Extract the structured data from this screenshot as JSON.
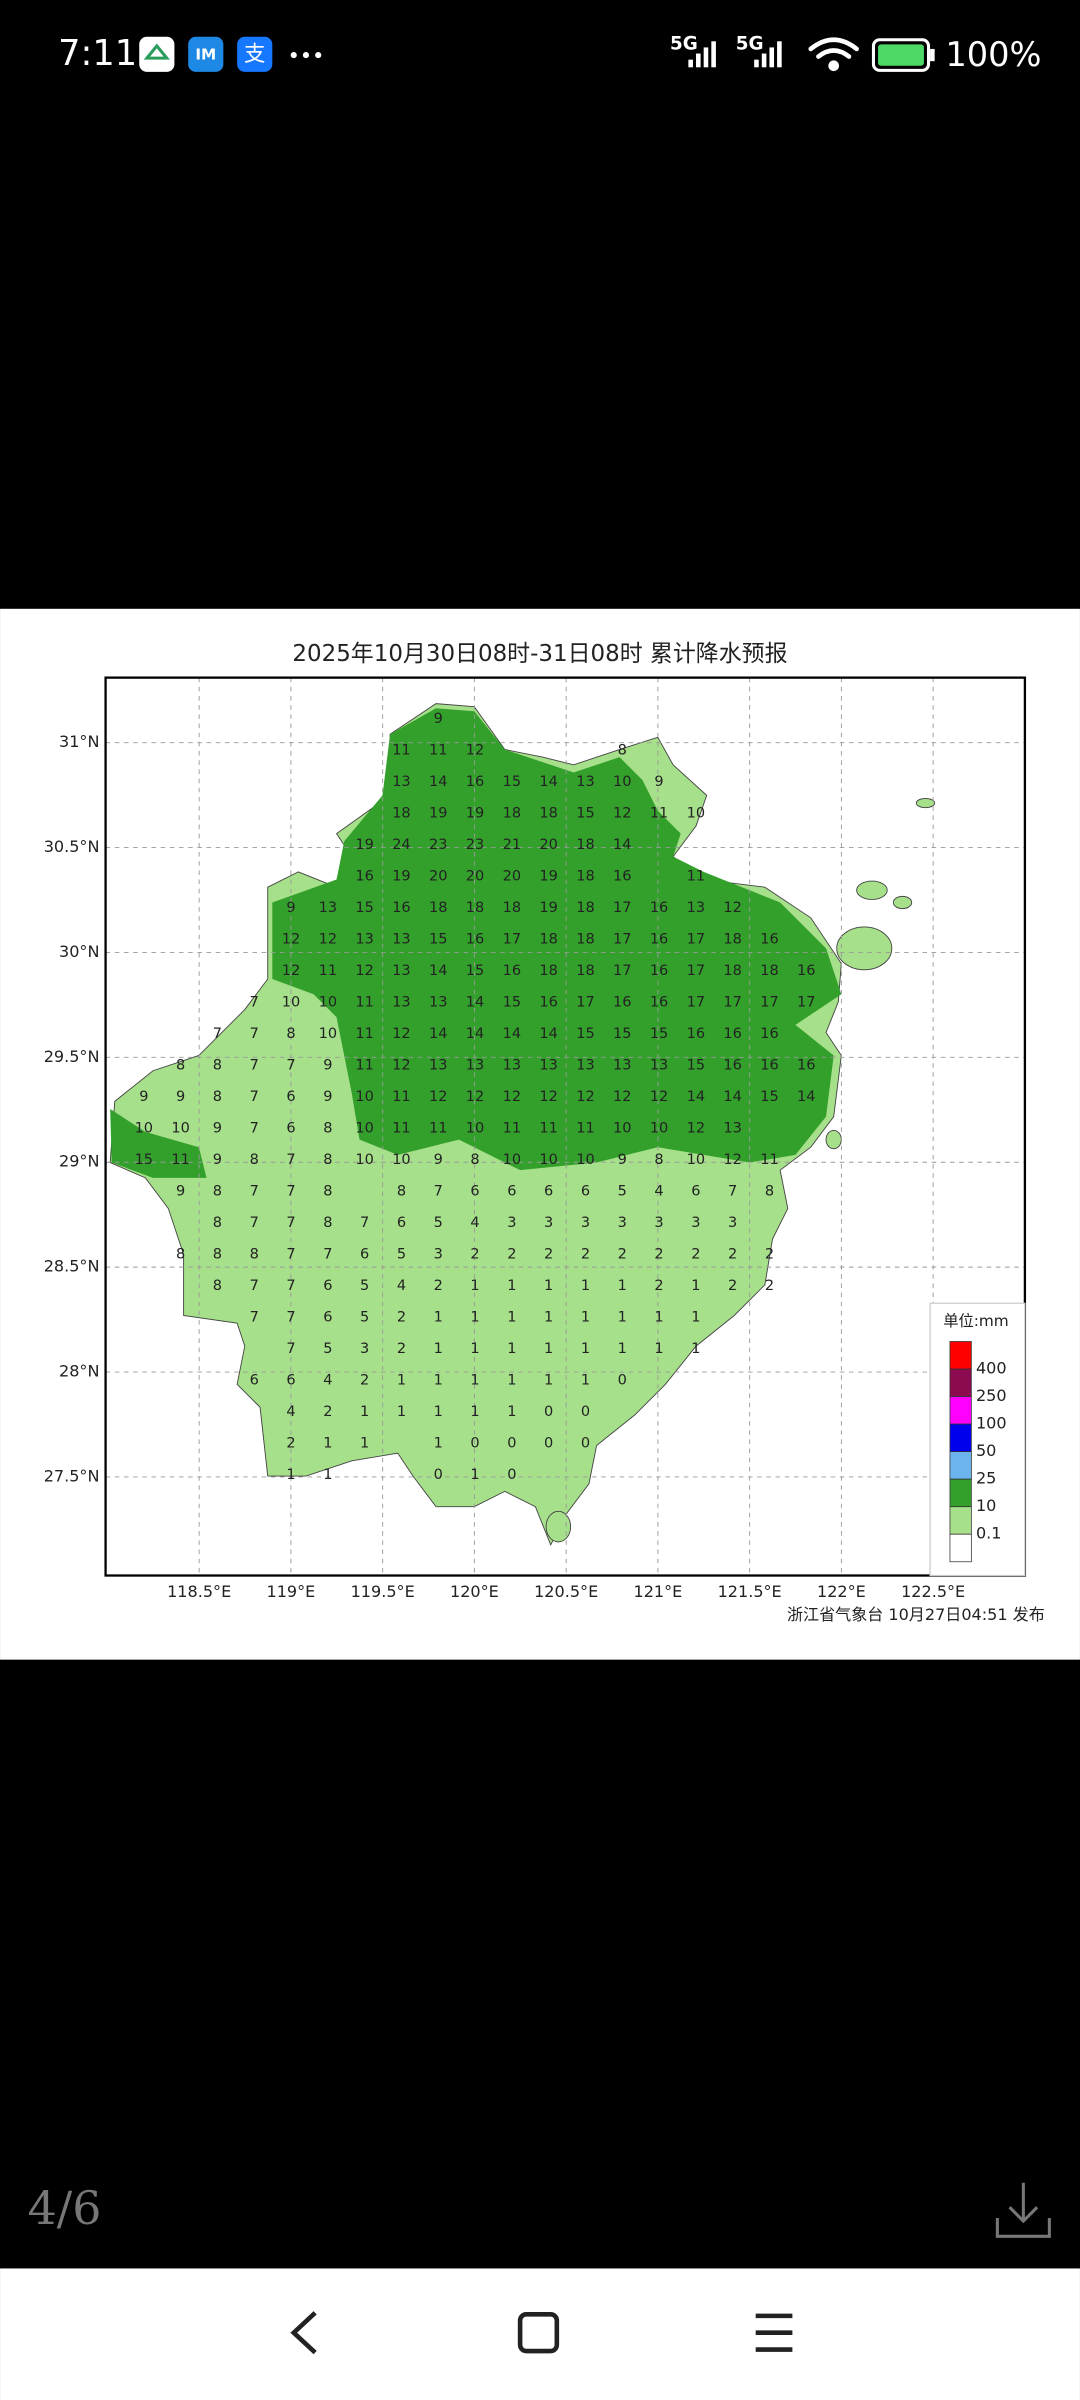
{
  "status_bar": {
    "time": "7:11",
    "network": [
      "5G",
      "5G"
    ],
    "battery": "100%"
  },
  "chart_data": {
    "type": "grid-map",
    "title": "2025年10月30日08时-31日08时 累计降水预报",
    "source": "浙江省气象台 10月27日04:51 发布",
    "xlim": [
      117.99,
      123.0
    ],
    "ylim": [
      27.03,
      31.31
    ],
    "xticks": [
      {
        "value": 118.5,
        "label": "118.5°E"
      },
      {
        "value": 119,
        "label": "119°E"
      },
      {
        "value": 119.5,
        "label": "119.5°E"
      },
      {
        "value": 120,
        "label": "120°E"
      },
      {
        "value": 120.5,
        "label": "120.5°E"
      },
      {
        "value": 121,
        "label": "121°E"
      },
      {
        "value": 121.5,
        "label": "121.5°E"
      },
      {
        "value": 122,
        "label": "122°E"
      },
      {
        "value": 122.5,
        "label": "122.5°E"
      }
    ],
    "yticks": [
      {
        "value": 31,
        "label": "31°N"
      },
      {
        "value": 30.5,
        "label": "30.5°N"
      },
      {
        "value": 30,
        "label": "30°N"
      },
      {
        "value": 29.5,
        "label": "29.5°N"
      },
      {
        "value": 29,
        "label": "29°N"
      },
      {
        "value": 28.5,
        "label": "28.5°N"
      },
      {
        "value": 28,
        "label": "28°N"
      },
      {
        "value": 27.5,
        "label": "27.5°N"
      }
    ],
    "grid": true,
    "rows": [
      [
        null,
        null,
        null,
        null,
        null,
        null,
        null,
        null,
        9,
        null,
        null,
        null,
        null,
        null,
        null,
        null,
        null,
        null,
        null
      ],
      [
        null,
        null,
        null,
        null,
        null,
        null,
        null,
        11,
        11,
        12,
        null,
        null,
        null,
        8,
        null,
        null,
        null,
        null,
        null
      ],
      [
        null,
        null,
        null,
        null,
        null,
        null,
        null,
        13,
        14,
        16,
        15,
        14,
        13,
        10,
        9,
        null,
        null,
        null,
        null
      ],
      [
        null,
        null,
        null,
        null,
        null,
        null,
        null,
        18,
        19,
        19,
        18,
        18,
        15,
        12,
        11,
        10,
        null,
        null,
        null
      ],
      [
        null,
        null,
        null,
        null,
        null,
        null,
        19,
        24,
        23,
        23,
        21,
        20,
        18,
        14,
        null,
        null,
        null,
        null,
        null
      ],
      [
        null,
        null,
        null,
        null,
        null,
        null,
        16,
        19,
        20,
        20,
        20,
        19,
        18,
        16,
        null,
        11,
        null,
        null,
        null
      ],
      [
        null,
        null,
        null,
        null,
        9,
        13,
        15,
        16,
        18,
        18,
        18,
        19,
        18,
        17,
        16,
        13,
        12,
        null,
        null
      ],
      [
        null,
        null,
        null,
        null,
        12,
        12,
        13,
        13,
        15,
        16,
        17,
        18,
        18,
        17,
        16,
        17,
        18,
        16,
        null
      ],
      [
        null,
        null,
        null,
        null,
        12,
        11,
        12,
        13,
        14,
        15,
        16,
        18,
        18,
        17,
        16,
        17,
        18,
        18,
        16
      ],
      [
        null,
        null,
        null,
        7,
        10,
        10,
        11,
        13,
        13,
        14,
        15,
        16,
        17,
        16,
        16,
        17,
        17,
        17,
        17
      ],
      [
        null,
        null,
        7,
        7,
        8,
        10,
        11,
        12,
        14,
        14,
        14,
        14,
        15,
        15,
        15,
        16,
        16,
        16,
        null
      ],
      [
        null,
        8,
        8,
        7,
        7,
        9,
        11,
        12,
        13,
        13,
        13,
        13,
        13,
        13,
        13,
        15,
        16,
        16,
        16
      ],
      [
        9,
        9,
        8,
        7,
        6,
        9,
        10,
        11,
        12,
        12,
        12,
        12,
        12,
        12,
        12,
        14,
        14,
        15,
        14
      ],
      [
        10,
        10,
        9,
        7,
        6,
        8,
        10,
        11,
        11,
        10,
        11,
        11,
        11,
        10,
        10,
        12,
        13,
        null,
        null
      ],
      [
        15,
        11,
        9,
        8,
        7,
        8,
        10,
        10,
        9,
        8,
        10,
        10,
        10,
        9,
        8,
        10,
        12,
        11,
        null
      ],
      [
        null,
        9,
        8,
        7,
        7,
        8,
        null,
        8,
        7,
        6,
        6,
        6,
        6,
        5,
        4,
        6,
        7,
        8,
        null
      ],
      [
        null,
        null,
        8,
        7,
        7,
        8,
        7,
        6,
        5,
        4,
        3,
        3,
        3,
        3,
        3,
        3,
        3,
        null,
        null
      ],
      [
        null,
        8,
        8,
        8,
        7,
        7,
        6,
        5,
        3,
        2,
        2,
        2,
        2,
        2,
        2,
        2,
        2,
        2,
        null
      ],
      [
        null,
        null,
        8,
        7,
        7,
        6,
        5,
        4,
        2,
        1,
        1,
        1,
        1,
        1,
        2,
        1,
        2,
        2,
        null
      ],
      [
        null,
        null,
        null,
        7,
        7,
        6,
        5,
        2,
        1,
        1,
        1,
        1,
        1,
        1,
        1,
        1,
        null,
        null,
        null
      ],
      [
        null,
        null,
        null,
        null,
        7,
        5,
        3,
        2,
        1,
        1,
        1,
        1,
        1,
        1,
        1,
        1,
        null,
        null,
        null
      ],
      [
        null,
        null,
        null,
        6,
        6,
        4,
        2,
        1,
        1,
        1,
        1,
        1,
        1,
        0,
        null,
        null,
        null,
        null,
        null
      ],
      [
        null,
        null,
        null,
        null,
        4,
        2,
        1,
        1,
        1,
        1,
        1,
        0,
        0,
        null,
        null,
        null,
        null,
        null,
        null
      ],
      [
        null,
        null,
        null,
        null,
        2,
        1,
        1,
        null,
        1,
        0,
        0,
        0,
        0,
        null,
        null,
        null,
        null,
        null,
        null
      ],
      [
        null,
        null,
        null,
        null,
        1,
        1,
        null,
        null,
        0,
        1,
        0,
        null,
        null,
        null,
        null,
        null,
        null,
        null,
        null
      ]
    ],
    "legend": {
      "title": "单位:mm",
      "levels": [
        400,
        250,
        100,
        50,
        25,
        10,
        0.1
      ],
      "colors": [
        "#ff0000",
        "#8b0a50",
        "#ff00ff",
        "#0000ee",
        "#6cb4ee",
        "#33a02c",
        "#a6e08a",
        "#ffffff"
      ]
    }
  },
  "viewer": {
    "page": "4/6"
  }
}
